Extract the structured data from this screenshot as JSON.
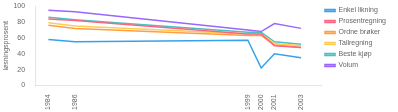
{
  "chart_data": {
    "type": "line",
    "x": [
      1984,
      1986,
      1999,
      2000,
      2001,
      2003
    ],
    "series": [
      {
        "name": "Enkel likning",
        "values": [
          58,
          55,
          57,
          22,
          40,
          35
        ]
      },
      {
        "name": "Prosentregning",
        "values": [
          84,
          82,
          65,
          65,
          50,
          48
        ]
      },
      {
        "name": "Ordne brøker",
        "values": [
          76,
          72,
          63,
          63,
          51,
          48
        ]
      },
      {
        "name": "Tallregning",
        "values": [
          79,
          75,
          65,
          65,
          53,
          50
        ]
      },
      {
        "name": "Beste kjøp",
        "values": [
          86,
          83,
          67,
          67,
          55,
          52
        ]
      },
      {
        "name": "Volum",
        "values": [
          95,
          93,
          70,
          68,
          78,
          72
        ]
      }
    ],
    "xlim": [
      1983,
      2004.5
    ],
    "xticks": [
      1984,
      1986,
      1999,
      2000,
      2001,
      2003
    ],
    "ylim": [
      0,
      100
    ],
    "yticks": [
      0,
      20,
      40,
      60,
      80,
      100
    ],
    "ylabel": "løsningsprosent",
    "grid": false,
    "legend": "right"
  }
}
